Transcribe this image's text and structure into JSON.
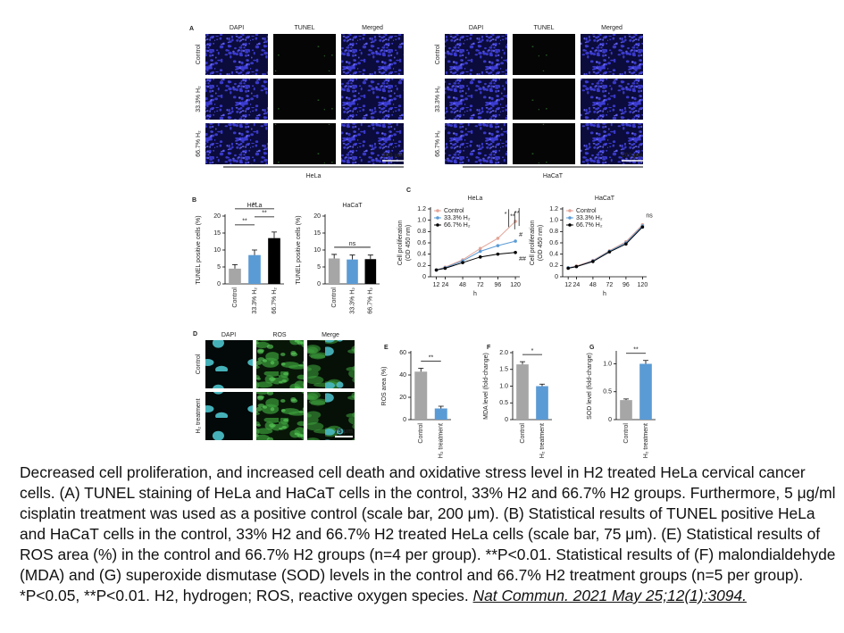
{
  "panels": {
    "A": {
      "label": "A",
      "columns": [
        "DAPI",
        "TUNEL",
        "Merged"
      ],
      "rows": [
        "Control",
        "33.3% H₂",
        "66.7% H₂"
      ],
      "groups": [
        "HeLa",
        "HaCaT"
      ],
      "scale_bar": "200 μm"
    },
    "D": {
      "label": "D",
      "columns": [
        "DAPI",
        "ROS",
        "Merge"
      ],
      "rows": [
        "Control",
        "H₂ treatment"
      ],
      "scale_bar": "75 μm"
    }
  },
  "chart_data": [
    {
      "type": "bar",
      "panel_label": "B",
      "title": "HeLa",
      "categories": [
        "Control",
        "33.3% H₂",
        "66.7% H₂"
      ],
      "values": [
        4.5,
        8.5,
        13.5
      ],
      "errors": [
        1.2,
        1.5,
        1.8
      ],
      "colors": [
        "#a6a6a6",
        "#5b9bd5",
        "#000000"
      ],
      "y_label": "TUNEL positive cells (%)",
      "ylim": [
        0,
        20
      ],
      "yticks": [
        0,
        5,
        10,
        15,
        20
      ],
      "annotations": [
        "**",
        "**",
        "**"
      ]
    },
    {
      "type": "bar",
      "title": "HaCaT",
      "categories": [
        "Control",
        "33.3% H₂",
        "66.7% H₂"
      ],
      "values": [
        7.5,
        7.2,
        7.3
      ],
      "errors": [
        1.2,
        1.3,
        1.2
      ],
      "colors": [
        "#a6a6a6",
        "#5b9bd5",
        "#000000"
      ],
      "y_label": "TUNEL positive cells (%)",
      "ylim": [
        0,
        20
      ],
      "yticks": [
        0,
        5,
        10,
        15,
        20
      ],
      "annotations": [
        "ns"
      ]
    },
    {
      "type": "line",
      "panel_label": "C",
      "title": "HeLa",
      "x": [
        12,
        24,
        48,
        72,
        96,
        120
      ],
      "xlim": [
        4,
        126
      ],
      "xticks": [
        12,
        24,
        48,
        72,
        96,
        120
      ],
      "x_label": "h",
      "y_label": [
        "Cell proliferation",
        "(OD 450 nm)"
      ],
      "ylim": [
        0,
        1.2
      ],
      "yticks": [
        0,
        0.2,
        0.4,
        0.6,
        0.8,
        {
          "value": 1,
          "label": "1.0"
        },
        1.2
      ],
      "series": [
        {
          "name": "Control",
          "color": "#e3a598",
          "values": [
            0.12,
            0.17,
            0.3,
            0.5,
            0.68,
            0.98
          ]
        },
        {
          "name": "33.3% H₂",
          "color": "#5b9bd5",
          "values": [
            0.12,
            0.16,
            0.28,
            0.45,
            0.55,
            0.63
          ]
        },
        {
          "name": "66.7% H₂",
          "color": "#000000",
          "values": [
            0.12,
            0.15,
            0.25,
            0.35,
            0.4,
            0.43
          ]
        }
      ],
      "annotations": [
        "*",
        "**",
        "**",
        "#",
        "##"
      ]
    },
    {
      "type": "line",
      "title": "HaCaT",
      "x": [
        12,
        24,
        48,
        72,
        96,
        120
      ],
      "xlim": [
        4,
        126
      ],
      "xticks": [
        12,
        24,
        48,
        72,
        96,
        120
      ],
      "x_label": "h",
      "y_label": [
        "Cell proliferation",
        "(OD 450 nm)"
      ],
      "ylim": [
        0,
        1.2
      ],
      "yticks": [
        0,
        0.2,
        0.4,
        0.6,
        0.8,
        {
          "value": 1,
          "label": "1.0"
        },
        1.2
      ],
      "series": [
        {
          "name": "Control",
          "color": "#e3a598",
          "values": [
            0.16,
            0.19,
            0.29,
            0.46,
            0.62,
            0.92
          ]
        },
        {
          "name": "33.3% H₂",
          "color": "#5b9bd5",
          "values": [
            0.16,
            0.18,
            0.28,
            0.45,
            0.6,
            0.9
          ]
        },
        {
          "name": "66.7% H₂",
          "color": "#000000",
          "values": [
            0.15,
            0.18,
            0.27,
            0.44,
            0.58,
            0.88
          ]
        }
      ],
      "annotations": [
        "ns"
      ]
    },
    {
      "type": "bar",
      "panel_label": "E",
      "categories": [
        "Control",
        "H₂ treatment"
      ],
      "values": [
        43,
        10
      ],
      "errors": [
        3,
        2
      ],
      "colors": [
        "#a6a6a6",
        "#5b9bd5"
      ],
      "y_label": "ROS area (%)",
      "ylim": [
        0,
        60
      ],
      "yticks": [
        0,
        20,
        40,
        60
      ],
      "annotations": [
        "**"
      ]
    },
    {
      "type": "bar",
      "panel_label": "F",
      "categories": [
        "Control",
        "H₂ treatment"
      ],
      "values": [
        1.65,
        1.0
      ],
      "errors": [
        0.08,
        0.06
      ],
      "colors": [
        "#a6a6a6",
        "#5b9bd5"
      ],
      "y_label": "MDA level (fold-change)",
      "ylim": [
        0,
        2
      ],
      "yticks": [
        0,
        0.5,
        {
          "value": 1,
          "label": "1.0"
        },
        1.5,
        {
          "value": 2,
          "label": "2.0"
        }
      ],
      "annotations": [
        "*"
      ]
    },
    {
      "type": "bar",
      "panel_label": "G",
      "categories": [
        "Control",
        "H₂ treatment"
      ],
      "values": [
        0.35,
        1.0
      ],
      "errors": [
        0.02,
        0.06
      ],
      "colors": [
        "#a6a6a6",
        "#5b9bd5"
      ],
      "y_label": "SOD level (fold-change)",
      "ylim": [
        0,
        1.2
      ],
      "yticks": [
        0,
        0.5,
        {
          "value": 1,
          "label": "1.0"
        }
      ],
      "annotations": [
        "**"
      ]
    }
  ],
  "caption": {
    "text": "Decreased cell proliferation, and increased cell death and oxidative stress level in H2 treated HeLa cervical cancer cells. (A) TUNEL staining of HeLa and HaCaT cells in the control, 33% H2 and 66.7% H2 groups. Furthermore, 5 μg/ml cisplatin treatment was used as a positive control (scale bar, 200 μm). (B) Statistical results of TUNEL positive HeLa and HaCaT cells in the control, 33% H2 and 66.7% H2 treated HeLa cells (scale bar, 75 μm). (E) Statistical results of ROS area (%) in the control and 66.7% H2 groups (n=4 per group). **P<0.01. Statistical results of (F) malondialdehyde (MDA) and (G) superoxide dismutase (SOD) levels in the control and 66.7% H2 treatment groups (n=5 per group). *P<0.05, **P<0.01. H2, hydrogen; ROS, reactive oxygen species.",
    "citation": "Nat Commun. 2021 May 25;12(1):3094."
  }
}
